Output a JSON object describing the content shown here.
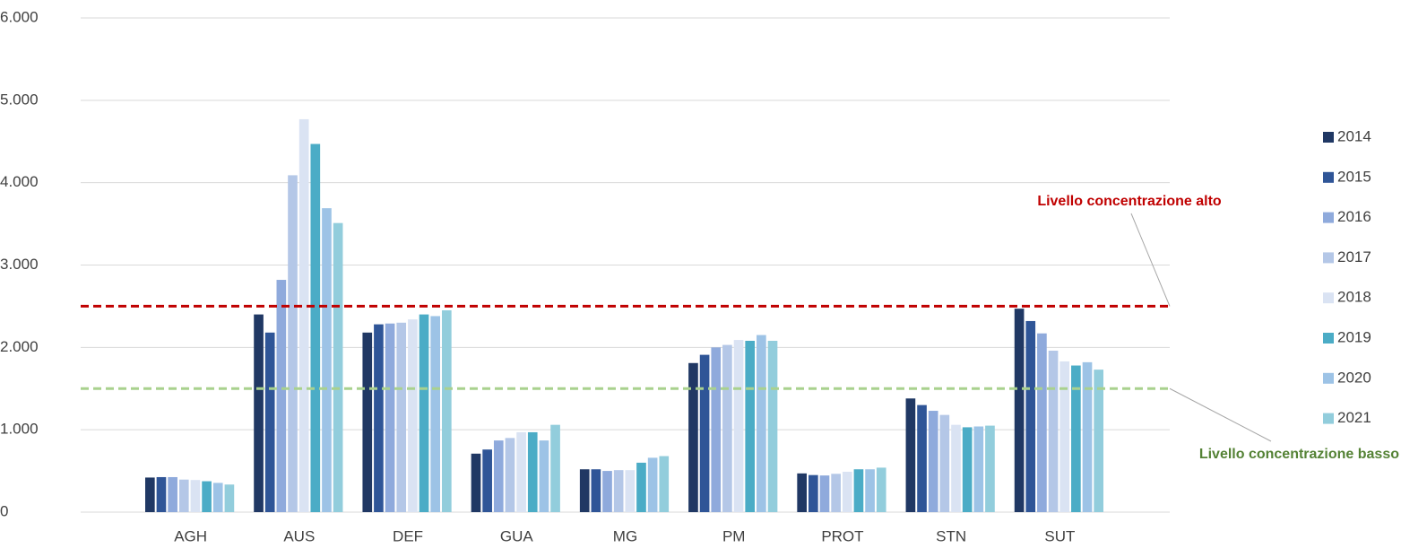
{
  "chart_data": {
    "type": "bar",
    "categories": [
      "AGH",
      "AUS",
      "DEF",
      "GUA",
      "MG",
      "PM",
      "PROT",
      "STN",
      "SUT"
    ],
    "series": [
      {
        "name": "2014",
        "color": "#203864",
        "values": [
          420,
          2400,
          2180,
          710,
          520,
          1810,
          470,
          1380,
          2470
        ]
      },
      {
        "name": "2015",
        "color": "#2f5597",
        "values": [
          425,
          2180,
          2280,
          760,
          520,
          1910,
          450,
          1300,
          2320
        ]
      },
      {
        "name": "2016",
        "color": "#8faadc",
        "values": [
          425,
          2820,
          2290,
          870,
          500,
          2000,
          445,
          1230,
          2170
        ]
      },
      {
        "name": "2017",
        "color": "#b4c7e7",
        "values": [
          395,
          4090,
          2300,
          900,
          510,
          2030,
          465,
          1180,
          1960
        ]
      },
      {
        "name": "2018",
        "color": "#dae3f3",
        "values": [
          390,
          4770,
          2340,
          970,
          510,
          2090,
          490,
          1060,
          1830
        ]
      },
      {
        "name": "2019",
        "color": "#4bacc6",
        "values": [
          375,
          4470,
          2400,
          970,
          600,
          2080,
          520,
          1030,
          1780
        ]
      },
      {
        "name": "2020",
        "color": "#9dc3e6",
        "values": [
          355,
          3690,
          2380,
          870,
          660,
          2150,
          520,
          1040,
          1820
        ]
      },
      {
        "name": "2021",
        "color": "#92cddc",
        "values": [
          335,
          3510,
          2450,
          1060,
          680,
          2080,
          540,
          1050,
          1730
        ]
      }
    ],
    "ylim": [
      0,
      6000
    ],
    "yticks": [
      0,
      {
        "value": 1000,
        "label": "1.000"
      },
      {
        "value": 2000,
        "label": "2.000"
      },
      {
        "value": 3000,
        "label": "3.000"
      },
      {
        "value": 4000,
        "label": "4.000"
      },
      {
        "value": 5000,
        "label": "5.000"
      },
      {
        "value": 6000,
        "label": "6.000"
      }
    ],
    "grid": true,
    "legend": "right",
    "reference_lines": [
      {
        "value": 2500,
        "label": "Livello concentrazione alto",
        "color": "#c00000",
        "label_color": "#c00000"
      },
      {
        "value": 1500,
        "label": "Livello concentrazione basso",
        "color": "#a9d18e",
        "label_color": "#548235"
      }
    ]
  }
}
